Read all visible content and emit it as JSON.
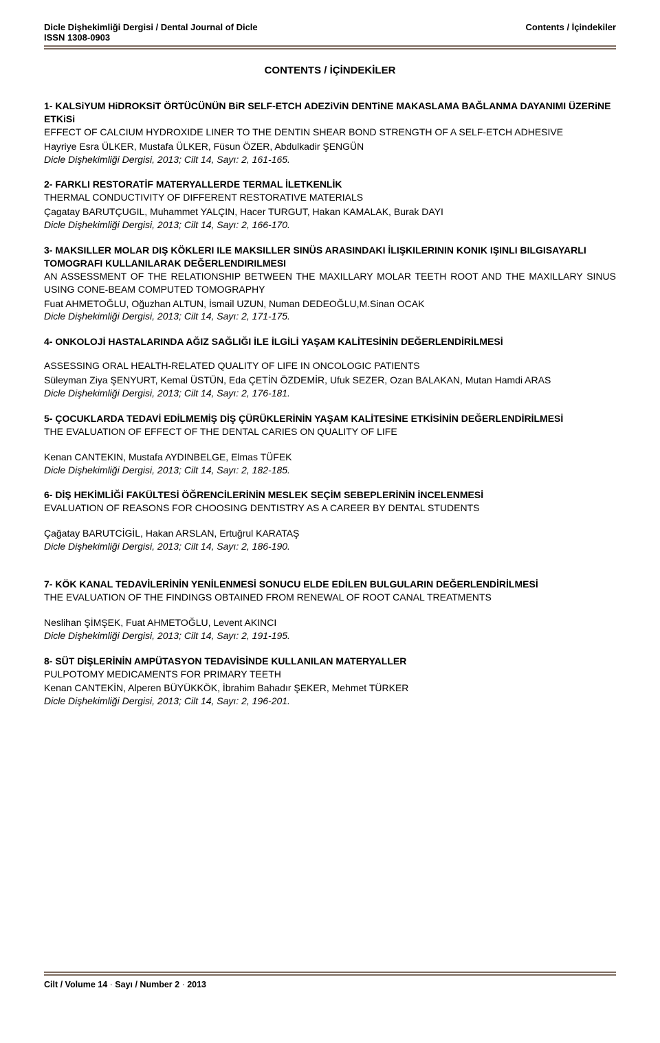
{
  "header": {
    "journal_name": "Dicle Dişhekimliği Dergisi / Dental Journal of Dicle",
    "issn": "ISSN 1308-0903",
    "contents_label": "Contents / İçindekiler"
  },
  "page_title": "CONTENTS / İÇİNDEKİLER",
  "entries": [
    {
      "title_tr": "1- KALSiYUM HiDROKSiT ÖRTÜCÜNÜN BiR SELF-ETCH ADEZiViN DENTiNE MAKASLAMA BAĞLANMA DAYANIMI ÜZERiNE ETKiSi",
      "title_en": "EFFECT OF CALCIUM HYDROXIDE LINER TO THE DENTIN SHEAR BOND STRENGTH OF A SELF-ETCH ADHESIVE",
      "authors": "Hayriye Esra ÜLKER, Mustafa ÜLKER, Füsun ÖZER, Abdulkadir ŞENGÜN",
      "citation": "Dicle Dişhekimliği Dergisi, 2013; Cilt 14, Sayı: 2, 161-165."
    },
    {
      "title_tr": "2- FARKLI RESTORATİF MATERYALLERDE TERMAL İLETKENLİK",
      "title_en": "THERMAL CONDUCTIVITY OF DIFFERENT RESTORATIVE MATERIALS",
      "authors": "Çagatay BARUTÇUGIL, Muhammet YALÇIN, Hacer TURGUT, Hakan KAMALAK, Burak DAYI",
      "citation": " Dicle Dişhekimliği Dergisi, 2013; Cilt 14, Sayı: 2, 166-170."
    },
    {
      "title_tr": "3- MAKSILLER MOLAR DIŞ KÖKLERI ILE MAKSILLER SINÜS ARASINDAKI İLIŞKILERININ KONIK IŞINLI BILGISAYARLI TOMOGRAFI KULLANILARAK DEĞERLENDIRILMESI",
      "title_en": "AN ASSESSMENT OF THE RELATIONSHIP BETWEEN THE MAXILLARY MOLAR TEETH ROOT AND THE MAXILLARY SINUS USING CONE-BEAM COMPUTED TOMOGRAPHY",
      "authors": "Fuat AHMETOĞLU, Oğuzhan ALTUN, İsmail UZUN, Numan DEDEOĞLU,M.Sinan OCAK",
      "citation": "Dicle Dişhekimliği Dergisi, 2013; Cilt 14, Sayı: 2, 171-175."
    },
    {
      "title_tr": "4- ONKOLOJİ HASTALARINDA AĞIZ SAĞLIĞI İLE İLGİLİ YAŞAM KALİTESİNİN DEĞERLENDİRİLMESİ",
      "title_en": "ASSESSING ORAL HEALTH-RELATED QUALITY OF LIFE IN ONCOLOGIC PATIENTS",
      "authors": "Süleyman Ziya ŞENYURT, Kemal ÜSTÜN, Eda ÇETİN ÖZDEMİR, Ufuk SEZER, Ozan BALAKAN, Mutan Hamdi ARAS",
      "citation": "Dicle Dişhekimliği Dergisi, 2013; Cilt 14, Sayı: 2, 176-181.",
      "gap_after_tr": true
    },
    {
      "title_tr": "5- ÇOCUKLARDA TEDAVİ EDİLMEMİŞ DİŞ ÇÜRÜKLERİNİN YAŞAM KALİTESİNE ETKİSİNİN DEĞERLENDİRİLMESİ",
      "title_en": "THE EVALUATION OF EFFECT OF THE DENTAL CARIES ON QUALITY OF LIFE",
      "authors": "Kenan CANTEKIN, Mustafa AYDINBELGE,  Elmas TÜFEK",
      "citation": "Dicle Dişhekimliği Dergisi, 2013; Cilt 14, Sayı: 2, 182-185.",
      "gap_after_en": true
    },
    {
      "title_tr": "6- DİŞ HEKİMLİĞİ FAKÜLTESİ ÖĞRENCİLERİNİN MESLEK SEÇİM SEBEPLERİNİN İNCELENMESİ",
      "title_en": "EVALUATION OF REASONS FOR CHOOSING DENTISTRY AS A CAREER BY DENTAL STUDENTS",
      "authors": "Çağatay BARUTCİGİL, Hakan ARSLAN, Ertuğrul KARATAŞ",
      "citation": "Dicle Dişhekimliği Dergisi, 2013; Cilt 14, Sayı: 2, 186-190.",
      "gap_after_en": true,
      "extra_bottom": true
    },
    {
      "title_tr": "7- KÖK KANAL TEDAVİLERİNİN YENİLENMESİ SONUCU ELDE EDİLEN BULGULARIN DEĞERLENDİRİLMESİ",
      "title_en": "THE EVALUATION OF THE FINDINGS OBTAINED FROM RENEWAL OF ROOT CANAL TREATMENTS",
      "authors": "Neslihan ŞİMŞEK, Fuat AHMETOĞLU, Levent AKINCI",
      "citation": "Dicle Dişhekimliği Dergisi, 2013; Cilt 14, Sayı: 2, 191-195.",
      "justify_tr": true,
      "gap_after_en": true
    },
    {
      "title_tr": "8- SÜT DİŞLERİNİN AMPÜTASYON TEDAVİSİNDE KULLANILAN MATERYALLER",
      "title_en": "PULPOTOMY MEDICAMENTS FOR PRIMARY TEETH",
      "authors": "Kenan CANTEKİN, Alperen BÜYÜKKÖK, İbrahim Bahadır ŞEKER, Mehmet TÜRKER",
      "citation": "Dicle Dişhekimliği Dergisi, 2013; Cilt 14, Sayı: 2, 196-201."
    }
  ],
  "footer": {
    "volume_label": "Cilt / Volume 14",
    "issue_label": "Sayı / Number 2",
    "year": "2013"
  }
}
